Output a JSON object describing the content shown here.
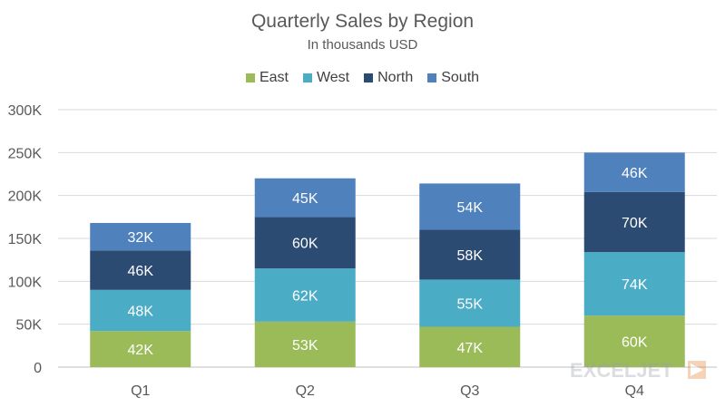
{
  "chart_data": {
    "type": "bar",
    "stacked": true,
    "title": "Quarterly Sales by Region",
    "subtitle": "In thousands USD",
    "xlabel": "",
    "ylabel": "",
    "categories": [
      "Q1",
      "Q2",
      "Q3",
      "Q4"
    ],
    "series": [
      {
        "name": "East",
        "color": "#9bbb59",
        "values": [
          42,
          53,
          47,
          60
        ],
        "labels": [
          "42K",
          "53K",
          "47K",
          "60K"
        ]
      },
      {
        "name": "West",
        "color": "#4bacc6",
        "values": [
          48,
          62,
          55,
          74
        ],
        "labels": [
          "48K",
          "62K",
          "55K",
          "74K"
        ]
      },
      {
        "name": "North",
        "color": "#2c4b72",
        "values": [
          46,
          60,
          58,
          70
        ],
        "labels": [
          "46K",
          "60K",
          "58K",
          "70K"
        ]
      },
      {
        "name": "South",
        "color": "#4f81bd",
        "values": [
          32,
          45,
          54,
          46
        ],
        "labels": [
          "32K",
          "45K",
          "54K",
          "46K"
        ]
      }
    ],
    "ylim": [
      0,
      300
    ],
    "yticks": [
      0,
      50,
      100,
      150,
      200,
      250,
      300
    ],
    "ytick_labels": [
      "0",
      "50K",
      "100K",
      "150K",
      "200K",
      "250K",
      "300K"
    ],
    "grid": true,
    "legend_position": "top"
  },
  "watermark": {
    "text": "EXCELJET"
  }
}
